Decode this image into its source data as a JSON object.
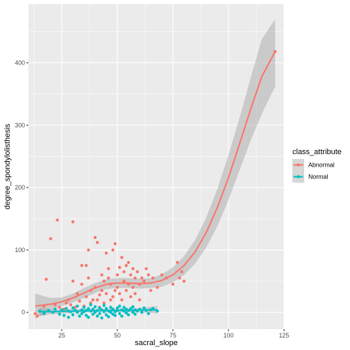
{
  "chart_data": {
    "type": "scatter",
    "xlabel": "sacral_slope",
    "ylabel": "degree_spondylolisthesis",
    "xlim": [
      10,
      125
    ],
    "ylim": [
      -27,
      494
    ],
    "x_ticks": [
      25,
      50,
      75,
      100,
      125
    ],
    "y_ticks": [
      0,
      100,
      200,
      300,
      400
    ],
    "grid": true,
    "legend": {
      "title": "class_attribute",
      "position": "right"
    },
    "series": [
      {
        "name": "Abnormal",
        "color": "#F8766D",
        "points": [
          [
            13,
            -2
          ],
          [
            14,
            -6
          ],
          [
            17,
            10
          ],
          [
            18,
            53
          ],
          [
            20,
            118
          ],
          [
            22,
            12
          ],
          [
            23,
            148
          ],
          [
            24,
            8
          ],
          [
            26,
            5
          ],
          [
            27,
            15
          ],
          [
            28,
            20
          ],
          [
            29,
            12
          ],
          [
            30,
            145
          ],
          [
            30,
            50
          ],
          [
            31,
            8
          ],
          [
            32,
            30
          ],
          [
            33,
            18
          ],
          [
            34,
            75
          ],
          [
            34,
            45
          ],
          [
            35,
            10
          ],
          [
            36,
            25
          ],
          [
            36,
            75
          ],
          [
            37,
            100
          ],
          [
            37,
            55
          ],
          [
            38,
            35
          ],
          [
            38,
            15
          ],
          [
            39,
            20
          ],
          [
            40,
            120
          ],
          [
            40,
            40
          ],
          [
            41,
            112
          ],
          [
            41,
            20
          ],
          [
            42,
            8
          ],
          [
            42,
            28
          ],
          [
            43,
            60
          ],
          [
            43,
            35
          ],
          [
            44,
            50
          ],
          [
            44,
            15
          ],
          [
            45,
            95
          ],
          [
            45,
            30
          ],
          [
            46,
            55
          ],
          [
            46,
            70
          ],
          [
            47,
            20
          ],
          [
            47,
            45
          ],
          [
            48,
            100
          ],
          [
            48,
            25
          ],
          [
            49,
            35
          ],
          [
            49,
            110
          ],
          [
            50,
            60
          ],
          [
            50,
            40
          ],
          [
            51,
            30
          ],
          [
            51,
            72
          ],
          [
            52,
            20
          ],
          [
            52,
            88
          ],
          [
            53,
            50
          ],
          [
            53,
            65
          ],
          [
            54,
            75
          ],
          [
            54,
            35
          ],
          [
            55,
            80
          ],
          [
            55,
            45
          ],
          [
            56,
            25
          ],
          [
            56,
            60
          ],
          [
            57,
            70
          ],
          [
            57,
            40
          ],
          [
            58,
            55
          ],
          [
            58,
            30
          ],
          [
            59,
            65
          ],
          [
            60,
            45
          ],
          [
            60,
            20
          ],
          [
            61,
            55
          ],
          [
            62,
            50
          ],
          [
            63,
            70
          ],
          [
            64,
            60
          ],
          [
            65,
            35
          ],
          [
            66,
            55
          ],
          [
            68,
            40
          ],
          [
            70,
            60
          ],
          [
            72,
            55
          ],
          [
            75,
            45
          ],
          [
            77,
            80
          ],
          [
            78,
            55
          ],
          [
            79,
            65
          ],
          [
            80,
            50
          ],
          [
            121,
            418
          ]
        ],
        "fit": [
          [
            13,
            10
          ],
          [
            20,
            13
          ],
          [
            25,
            17
          ],
          [
            30,
            23
          ],
          [
            35,
            31
          ],
          [
            40,
            39
          ],
          [
            45,
            45
          ],
          [
            50,
            47
          ],
          [
            55,
            47
          ],
          [
            60,
            46
          ],
          [
            65,
            47
          ],
          [
            70,
            51
          ],
          [
            75,
            60
          ],
          [
            80,
            75
          ],
          [
            85,
            97
          ],
          [
            90,
            128
          ],
          [
            95,
            168
          ],
          [
            100,
            216
          ],
          [
            105,
            270
          ],
          [
            110,
            326
          ],
          [
            115,
            378
          ],
          [
            121,
            418
          ]
        ],
        "band_low": [
          [
            13,
            -10
          ],
          [
            20,
            3
          ],
          [
            25,
            10
          ],
          [
            30,
            16
          ],
          [
            35,
            23
          ],
          [
            40,
            31
          ],
          [
            45,
            37
          ],
          [
            50,
            39
          ],
          [
            55,
            39
          ],
          [
            60,
            38
          ],
          [
            65,
            39
          ],
          [
            70,
            41
          ],
          [
            75,
            48
          ],
          [
            80,
            60
          ],
          [
            85,
            78
          ],
          [
            90,
            104
          ],
          [
            95,
            138
          ],
          [
            100,
            180
          ],
          [
            105,
            228
          ],
          [
            110,
            276
          ],
          [
            115,
            318
          ],
          [
            121,
            362
          ]
        ],
        "band_high": [
          [
            13,
            30
          ],
          [
            20,
            23
          ],
          [
            25,
            24
          ],
          [
            30,
            30
          ],
          [
            35,
            39
          ],
          [
            40,
            47
          ],
          [
            45,
            53
          ],
          [
            50,
            55
          ],
          [
            55,
            55
          ],
          [
            60,
            54
          ],
          [
            65,
            55
          ],
          [
            70,
            61
          ],
          [
            75,
            72
          ],
          [
            80,
            90
          ],
          [
            85,
            116
          ],
          [
            90,
            152
          ],
          [
            95,
            198
          ],
          [
            100,
            252
          ],
          [
            105,
            312
          ],
          [
            110,
            376
          ],
          [
            115,
            438
          ],
          [
            121,
            470
          ]
        ]
      },
      {
        "name": "Normal",
        "color": "#00BFC4",
        "points": [
          [
            15,
            2
          ],
          [
            17,
            -2
          ],
          [
            19,
            3
          ],
          [
            21,
            0
          ],
          [
            22,
            5
          ],
          [
            24,
            -3
          ],
          [
            25,
            4
          ],
          [
            26,
            -5
          ],
          [
            27,
            6
          ],
          [
            28,
            2
          ],
          [
            28,
            -8
          ],
          [
            29,
            1
          ],
          [
            30,
            7
          ],
          [
            30,
            -4
          ],
          [
            31,
            3
          ],
          [
            32,
            0
          ],
          [
            32,
            10
          ],
          [
            33,
            -6
          ],
          [
            34,
            4
          ],
          [
            34,
            -2
          ],
          [
            35,
            8
          ],
          [
            35,
            1
          ],
          [
            36,
            -5
          ],
          [
            36,
            3
          ],
          [
            37,
            6
          ],
          [
            37,
            -8
          ],
          [
            38,
            2
          ],
          [
            38,
            12
          ],
          [
            39,
            -3
          ],
          [
            39,
            5
          ],
          [
            40,
            0
          ],
          [
            40,
            9
          ],
          [
            41,
            -6
          ],
          [
            41,
            3
          ],
          [
            42,
            7
          ],
          [
            42,
            -2
          ],
          [
            43,
            4
          ],
          [
            43,
            -9
          ],
          [
            44,
            1
          ],
          [
            44,
            11
          ],
          [
            45,
            -4
          ],
          [
            45,
            6
          ],
          [
            46,
            2
          ],
          [
            46,
            -7
          ],
          [
            47,
            8
          ],
          [
            47,
            0
          ],
          [
            48,
            -3
          ],
          [
            48,
            5
          ],
          [
            49,
            1
          ],
          [
            49,
            -5
          ],
          [
            50,
            7
          ],
          [
            50,
            3
          ],
          [
            51,
            -2
          ],
          [
            51,
            10
          ],
          [
            52,
            4
          ],
          [
            52,
            -6
          ],
          [
            53,
            2
          ],
          [
            53,
            8
          ],
          [
            54,
            -1
          ],
          [
            54,
            5
          ],
          [
            55,
            3
          ],
          [
            55,
            -4
          ],
          [
            56,
            6
          ],
          [
            57,
            0
          ],
          [
            57,
            9
          ],
          [
            58,
            4
          ],
          [
            58,
            -3
          ],
          [
            59,
            2
          ],
          [
            60,
            5
          ],
          [
            61,
            0
          ],
          [
            62,
            7
          ],
          [
            63,
            3
          ],
          [
            64,
            -2
          ],
          [
            65,
            4
          ],
          [
            66,
            6
          ],
          [
            68,
            2
          ]
        ],
        "fit": [
          [
            15,
            1
          ],
          [
            20,
            1
          ],
          [
            25,
            1.5
          ],
          [
            30,
            2
          ],
          [
            35,
            2.5
          ],
          [
            40,
            2.5
          ],
          [
            45,
            3
          ],
          [
            50,
            3
          ],
          [
            55,
            3
          ],
          [
            60,
            3.5
          ],
          [
            65,
            4
          ],
          [
            68,
            4
          ]
        ],
        "band_low": [
          [
            15,
            -6
          ],
          [
            20,
            -3
          ],
          [
            25,
            -2
          ],
          [
            30,
            -1
          ],
          [
            35,
            0
          ],
          [
            40,
            0
          ],
          [
            45,
            0.5
          ],
          [
            50,
            0.5
          ],
          [
            55,
            0
          ],
          [
            60,
            0
          ],
          [
            65,
            -1
          ],
          [
            68,
            -2
          ]
        ],
        "band_high": [
          [
            15,
            8
          ],
          [
            20,
            5
          ],
          [
            25,
            5
          ],
          [
            30,
            5
          ],
          [
            35,
            5
          ],
          [
            40,
            5
          ],
          [
            45,
            5.5
          ],
          [
            50,
            5.5
          ],
          [
            55,
            6
          ],
          [
            60,
            7
          ],
          [
            65,
            9
          ],
          [
            68,
            10
          ]
        ]
      }
    ]
  }
}
